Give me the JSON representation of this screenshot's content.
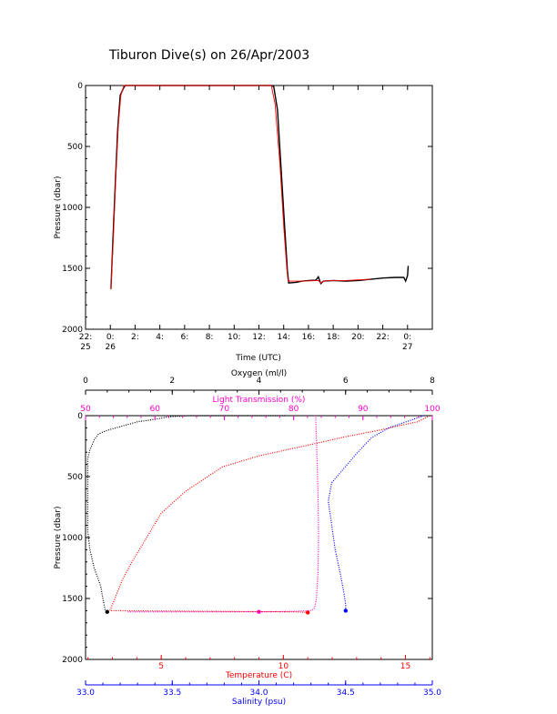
{
  "chart_data": [
    {
      "type": "line",
      "title": "Tiburon Dive(s) on 26/Apr/2003",
      "xlabel": "Time (UTC)",
      "ylabel": "Pressure (dbar)",
      "x_unit": "hours relative to 26/Apr/2003 00:00 UTC",
      "xlim": [
        -2,
        26
      ],
      "ylim": [
        2000,
        0
      ],
      "y_ticks": [
        {
          "value": 0,
          "label": "0"
        },
        {
          "value": 500,
          "label": "500"
        },
        {
          "value": 1000,
          "label": "1000"
        },
        {
          "value": 1500,
          "label": "1500"
        },
        {
          "value": 2000,
          "label": "2000"
        }
      ],
      "x_ticks": [
        {
          "value": -2,
          "label": "22:",
          "label2": "25"
        },
        {
          "value": 0,
          "label": "0:",
          "label2": "26"
        },
        {
          "value": 2,
          "label": "2:",
          "label2": ""
        },
        {
          "value": 4,
          "label": "4:",
          "label2": ""
        },
        {
          "value": 6,
          "label": "6:",
          "label2": ""
        },
        {
          "value": 8,
          "label": "8:",
          "label2": ""
        },
        {
          "value": 10,
          "label": "10:",
          "label2": ""
        },
        {
          "value": 12,
          "label": "12:",
          "label2": ""
        },
        {
          "value": 14,
          "label": "14:",
          "label2": ""
        },
        {
          "value": 16,
          "label": "16:",
          "label2": ""
        },
        {
          "value": 18,
          "label": "18:",
          "label2": ""
        },
        {
          "value": 20,
          "label": "20:",
          "label2": ""
        },
        {
          "value": 22,
          "label": "22:",
          "label2": ""
        },
        {
          "value": 24,
          "label": "0:",
          "label2": "27"
        }
      ],
      "series": [
        {
          "color": "#000000",
          "points": [
            [
              0.05,
              1670
            ],
            [
              0.2,
              1300
            ],
            [
              0.4,
              800
            ],
            [
              0.6,
              350
            ],
            [
              0.8,
              80
            ],
            [
              1.1,
              15
            ],
            [
              1.2,
              0
            ],
            [
              6,
              0
            ],
            [
              13,
              0
            ],
            [
              13.2,
              10
            ],
            [
              13.5,
              200
            ],
            [
              13.8,
              700
            ],
            [
              14.1,
              1200
            ],
            [
              14.3,
              1520
            ],
            [
              14.4,
              1620
            ],
            [
              15,
              1615
            ],
            [
              15.5,
              1605
            ],
            [
              16,
              1600
            ],
            [
              16.6,
              1598
            ],
            [
              16.8,
              1570
            ],
            [
              16.9,
              1600
            ],
            [
              17,
              1625
            ],
            [
              17.2,
              1605
            ],
            [
              18,
              1600
            ],
            [
              19,
              1605
            ],
            [
              20,
              1600
            ],
            [
              21,
              1590
            ],
            [
              22,
              1580
            ],
            [
              23,
              1575
            ],
            [
              23.7,
              1575
            ],
            [
              23.85,
              1605
            ],
            [
              24.0,
              1560
            ],
            [
              24.05,
              1480
            ]
          ]
        },
        {
          "color": "#ff0000",
          "points": [
            [
              0.05,
              1670
            ],
            [
              0.25,
              1250
            ],
            [
              0.45,
              750
            ],
            [
              0.65,
              320
            ],
            [
              0.85,
              80
            ],
            [
              1.1,
              0
            ],
            [
              6,
              0
            ],
            [
              13,
              0
            ],
            [
              13.3,
              150
            ],
            [
              13.7,
              650
            ],
            [
              14.0,
              1150
            ],
            [
              14.25,
              1500
            ],
            [
              14.35,
              1605
            ],
            [
              15.5,
              1605
            ],
            [
              16.8,
              1600
            ],
            [
              17.0,
              1620
            ],
            [
              17.2,
              1605
            ],
            [
              18,
              1600
            ],
            [
              19,
              1600
            ],
            [
              20,
              1595
            ],
            [
              21,
              1590
            ]
          ]
        }
      ]
    },
    {
      "type": "scatter",
      "ylabel": "Pressure (dbar)",
      "ylim": [
        2000,
        0
      ],
      "y_ticks": [
        {
          "value": 0,
          "label": "0"
        },
        {
          "value": 500,
          "label": "500"
        },
        {
          "value": 1000,
          "label": "1000"
        },
        {
          "value": 1500,
          "label": "1500"
        },
        {
          "value": 2000,
          "label": "2000"
        }
      ],
      "axes": [
        {
          "key": "oxygen",
          "label": "Oxygen (ml/l)",
          "color": "#000000",
          "position": "top-outer",
          "range": [
            0,
            8
          ],
          "ticks": [
            {
              "v": 0,
              "l": "0"
            },
            {
              "v": 2,
              "l": "2"
            },
            {
              "v": 4,
              "l": "4"
            },
            {
              "v": 6,
              "l": "6"
            },
            {
              "v": 8,
              "l": "8"
            }
          ]
        },
        {
          "key": "transmission",
          "label": "Light Transmission (%)",
          "color": "#ff00cc",
          "position": "top-inner",
          "range": [
            50,
            100
          ],
          "ticks": [
            {
              "v": 50,
              "l": "50"
            },
            {
              "v": 60,
              "l": "60"
            },
            {
              "v": 70,
              "l": "70"
            },
            {
              "v": 80,
              "l": "80"
            },
            {
              "v": 90,
              "l": "90"
            },
            {
              "v": 100,
              "l": "100"
            }
          ]
        },
        {
          "key": "temperature",
          "label": "Temperature (C)",
          "color": "#ff0000",
          "position": "bottom-inner",
          "range": [
            1.9,
            16.1
          ],
          "ticks": [
            {
              "v": 5,
              "l": "5"
            },
            {
              "v": 10,
              "l": "10"
            },
            {
              "v": 15,
              "l": "15"
            }
          ]
        },
        {
          "key": "salinity",
          "label": "Salinity (psu)",
          "color": "#0000ff",
          "position": "bottom-outer",
          "range": [
            33.0,
            35.0
          ],
          "ticks": [
            {
              "v": 33.0,
              "l": "33.0"
            },
            {
              "v": 33.5,
              "l": "33.5"
            },
            {
              "v": 34.0,
              "l": "34.0"
            },
            {
              "v": 34.5,
              "l": "34.5"
            },
            {
              "v": 35.0,
              "l": "35.0"
            }
          ]
        }
      ],
      "series": [
        {
          "axis": "oxygen",
          "color": "#000000",
          "points": [
            [
              4.6,
              0
            ],
            [
              3.8,
              0
            ],
            [
              2.4,
              0
            ],
            [
              1.9,
              10
            ],
            [
              1.6,
              30
            ],
            [
              1.2,
              50
            ],
            [
              0.9,
              80
            ],
            [
              0.5,
              120
            ],
            [
              0.3,
              150
            ],
            [
              0.2,
              200
            ],
            [
              0.1,
              280
            ],
            [
              0.05,
              350
            ],
            [
              0.05,
              950
            ],
            [
              0.1,
              1100
            ],
            [
              0.2,
              1250
            ],
            [
              0.35,
              1400
            ],
            [
              0.4,
              1500
            ],
            [
              0.45,
              1590
            ],
            [
              0.5,
              1610
            ]
          ]
        },
        {
          "axis": "transmission",
          "color": "#ff00cc",
          "points": [
            [
              83,
              0
            ],
            [
              83.2,
              10
            ],
            [
              83.2,
              50
            ],
            [
              83.3,
              200
            ],
            [
              83.5,
              600
            ],
            [
              83.6,
              1000
            ],
            [
              83.5,
              1300
            ],
            [
              83.3,
              1500
            ],
            [
              83.0,
              1580
            ],
            [
              82.5,
              1600
            ],
            [
              80,
              1605
            ],
            [
              75,
              1610
            ],
            [
              70,
              1610
            ],
            [
              65,
              1610
            ],
            [
              60,
              1610
            ],
            [
              56,
              1610
            ]
          ]
        },
        {
          "axis": "temperature",
          "color": "#ff0000",
          "points": [
            [
              16.0,
              0
            ],
            [
              15.5,
              50
            ],
            [
              14.8,
              80
            ],
            [
              13.9,
              120
            ],
            [
              12.5,
              175
            ],
            [
              11.5,
              220
            ],
            [
              9.0,
              330
            ],
            [
              7.5,
              420
            ],
            [
              6.0,
              620
            ],
            [
              5.0,
              800
            ],
            [
              4.4,
              1000
            ],
            [
              3.8,
              1200
            ],
            [
              3.4,
              1350
            ],
            [
              3.1,
              1500
            ],
            [
              2.9,
              1600
            ],
            [
              10.5,
              1610
            ],
            [
              11.0,
              1615
            ]
          ]
        },
        {
          "axis": "salinity",
          "color": "#0000ff",
          "points": [
            [
              34.95,
              0
            ],
            [
              34.85,
              50
            ],
            [
              34.75,
              100
            ],
            [
              34.65,
              180
            ],
            [
              34.57,
              300
            ],
            [
              34.48,
              450
            ],
            [
              34.42,
              550
            ],
            [
              34.4,
              700
            ],
            [
              34.42,
              900
            ],
            [
              34.44,
              1100
            ],
            [
              34.47,
              1300
            ],
            [
              34.49,
              1450
            ],
            [
              34.5,
              1550
            ],
            [
              34.5,
              1600
            ]
          ]
        }
      ]
    }
  ]
}
